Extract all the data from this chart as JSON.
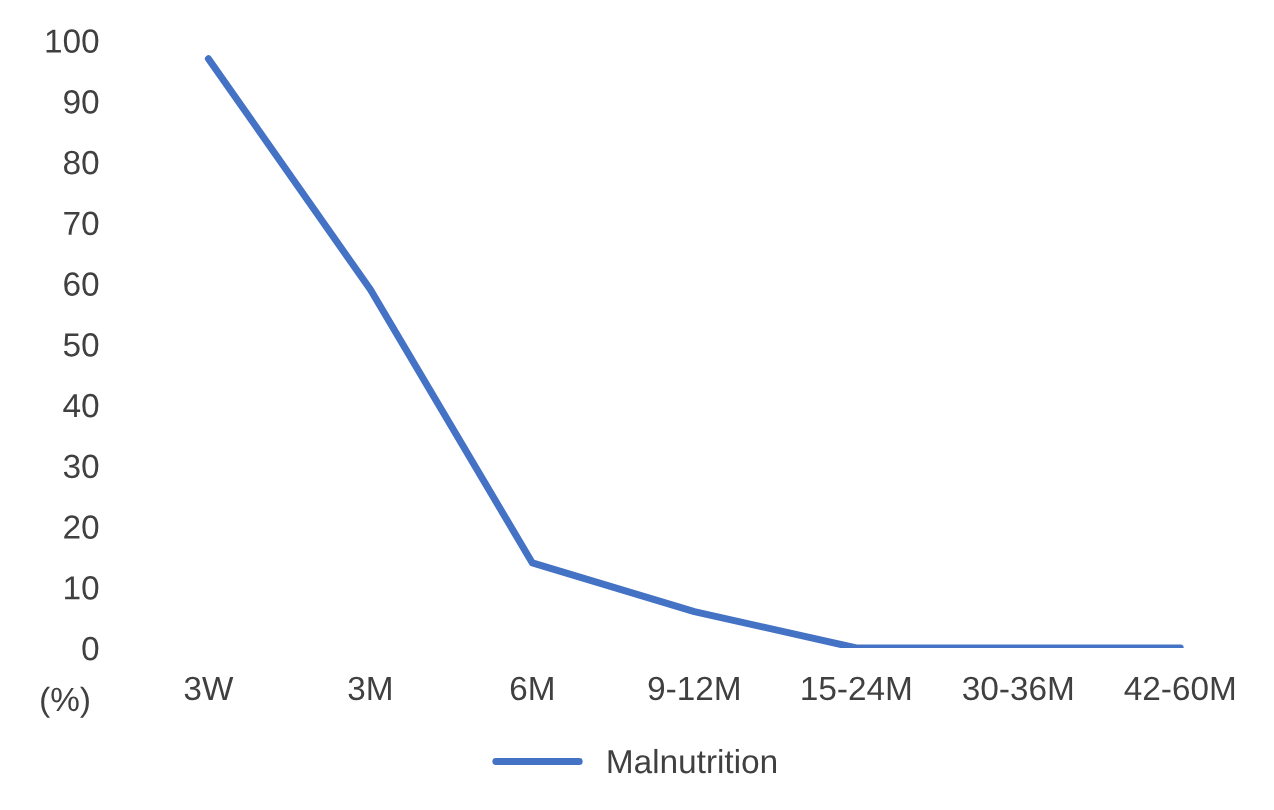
{
  "chart_data": {
    "type": "line",
    "ylabel": "(%)",
    "categories": [
      "3W",
      "3M",
      "6M",
      "9-12M",
      "15-24M",
      "30-36M",
      "42-60M"
    ],
    "series": [
      {
        "name": "Malnutrition",
        "color": "#4472c4",
        "values": [
          97,
          59,
          14,
          6,
          0,
          0,
          0
        ]
      }
    ],
    "ylim": [
      0,
      100
    ],
    "yticks": [
      0,
      10,
      20,
      30,
      40,
      50,
      60,
      70,
      80,
      90,
      100
    ],
    "grid": false,
    "legend": "bottom",
    "marker": "none",
    "line_style": "solid"
  }
}
